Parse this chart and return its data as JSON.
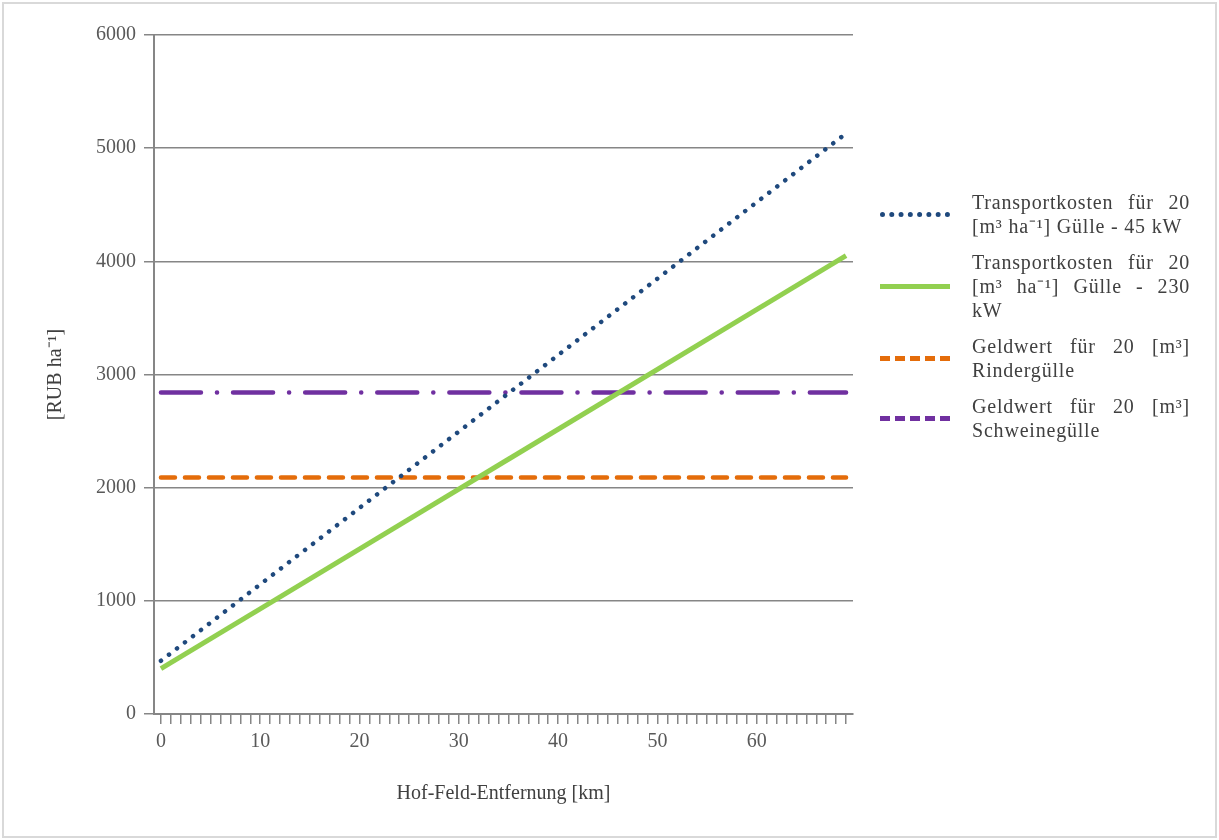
{
  "chart_data": {
    "type": "line",
    "xlabel": "Hof-Feld-Entfernung [km]",
    "ylabel": "[RUB ha⁻¹]",
    "x": [
      0,
      69
    ],
    "series": [
      {
        "name": "Transportkosten für 20 [m³ ha⁻¹] Gülle - 45 kW",
        "color": "#1f497d",
        "values": [
          470,
          5130
        ],
        "line_style": "dotted"
      },
      {
        "name": "Transportkosten für 20 [m³ ha⁻¹] Gülle - 230 kW",
        "color": "#92d050",
        "values": [
          400,
          4050
        ],
        "line_style": "solid"
      },
      {
        "name": "Geldwert für 20 [m³] Rindergülle",
        "color": "#e46c0a",
        "values": [
          2090,
          2090
        ],
        "line_style": "dashed"
      },
      {
        "name": "Geldwert für 20 [m³] Schweinegülle",
        "color": "#7030a0",
        "values": [
          2840,
          2840
        ],
        "line_style": "dashdot"
      }
    ],
    "xlim": [
      -0.7,
      69.7
    ],
    "xticks": [
      0,
      {
        "value": 1,
        "label": null
      },
      {
        "value": 2,
        "label": null
      },
      {
        "value": 3,
        "label": null
      },
      {
        "value": 4,
        "label": null
      },
      {
        "value": 5,
        "label": null
      },
      {
        "value": 6,
        "label": null
      },
      {
        "value": 7,
        "label": null
      },
      {
        "value": 8,
        "label": null
      },
      {
        "value": 9,
        "label": null
      },
      10,
      {
        "value": 11,
        "label": null
      },
      {
        "value": 12,
        "label": null
      },
      {
        "value": 13,
        "label": null
      },
      {
        "value": 14,
        "label": null
      },
      {
        "value": 15,
        "label": null
      },
      {
        "value": 16,
        "label": null
      },
      {
        "value": 17,
        "label": null
      },
      {
        "value": 18,
        "label": null
      },
      {
        "value": 19,
        "label": null
      },
      20,
      {
        "value": 21,
        "label": null
      },
      {
        "value": 22,
        "label": null
      },
      {
        "value": 23,
        "label": null
      },
      {
        "value": 24,
        "label": null
      },
      {
        "value": 25,
        "label": null
      },
      {
        "value": 26,
        "label": null
      },
      {
        "value": 27,
        "label": null
      },
      {
        "value": 28,
        "label": null
      },
      {
        "value": 29,
        "label": null
      },
      30,
      {
        "value": 31,
        "label": null
      },
      {
        "value": 32,
        "label": null
      },
      {
        "value": 33,
        "label": null
      },
      {
        "value": 34,
        "label": null
      },
      {
        "value": 35,
        "label": null
      },
      {
        "value": 36,
        "label": null
      },
      {
        "value": 37,
        "label": null
      },
      {
        "value": 38,
        "label": null
      },
      {
        "value": 39,
        "label": null
      },
      40,
      {
        "value": 41,
        "label": null
      },
      {
        "value": 42,
        "label": null
      },
      {
        "value": 43,
        "label": null
      },
      {
        "value": 44,
        "label": null
      },
      {
        "value": 45,
        "label": null
      },
      {
        "value": 46,
        "label": null
      },
      {
        "value": 47,
        "label": null
      },
      {
        "value": 48,
        "label": null
      },
      {
        "value": 49,
        "label": null
      },
      50,
      {
        "value": 51,
        "label": null
      },
      {
        "value": 52,
        "label": null
      },
      {
        "value": 53,
        "label": null
      },
      {
        "value": 54,
        "label": null
      },
      {
        "value": 55,
        "label": null
      },
      {
        "value": 56,
        "label": null
      },
      {
        "value": 57,
        "label": null
      },
      {
        "value": 58,
        "label": null
      },
      {
        "value": 59,
        "label": null
      },
      60,
      {
        "value": 61,
        "label": null
      },
      {
        "value": 62,
        "label": null
      },
      {
        "value": 63,
        "label": null
      },
      {
        "value": 64,
        "label": null
      },
      {
        "value": 65,
        "label": null
      },
      {
        "value": 66,
        "label": null
      },
      {
        "value": 67,
        "label": null
      },
      {
        "value": 68,
        "label": null
      },
      {
        "value": 69,
        "label": null
      }
    ],
    "ylim": [
      0,
      6000
    ],
    "yticks": [
      0,
      1000,
      2000,
      3000,
      4000,
      5000,
      6000
    ],
    "grid": "y",
    "legend": "right",
    "marker": "none"
  }
}
